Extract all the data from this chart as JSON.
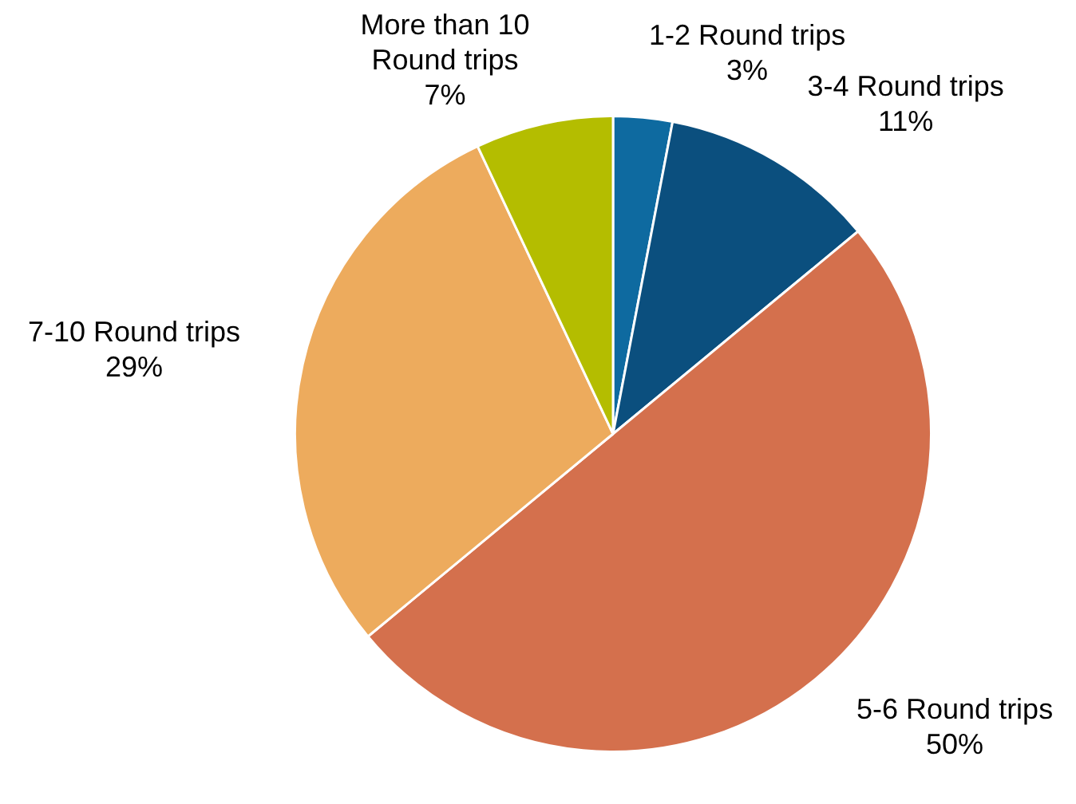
{
  "chart_data": {
    "type": "pie",
    "categories": [
      "1-2 Round trips",
      "3-4 Round trips",
      "5-6 Round trips",
      "7-10 Round trips",
      "More than 10 Round trips"
    ],
    "values": [
      3,
      11,
      50,
      29,
      7
    ],
    "value_labels": [
      "3%",
      "11%",
      "50%",
      "29%",
      "7%"
    ],
    "colors": [
      "#0e6aa0",
      "#0b4f7e",
      "#d4704d",
      "#edab5d",
      "#b4bd00"
    ],
    "legend": false
  }
}
